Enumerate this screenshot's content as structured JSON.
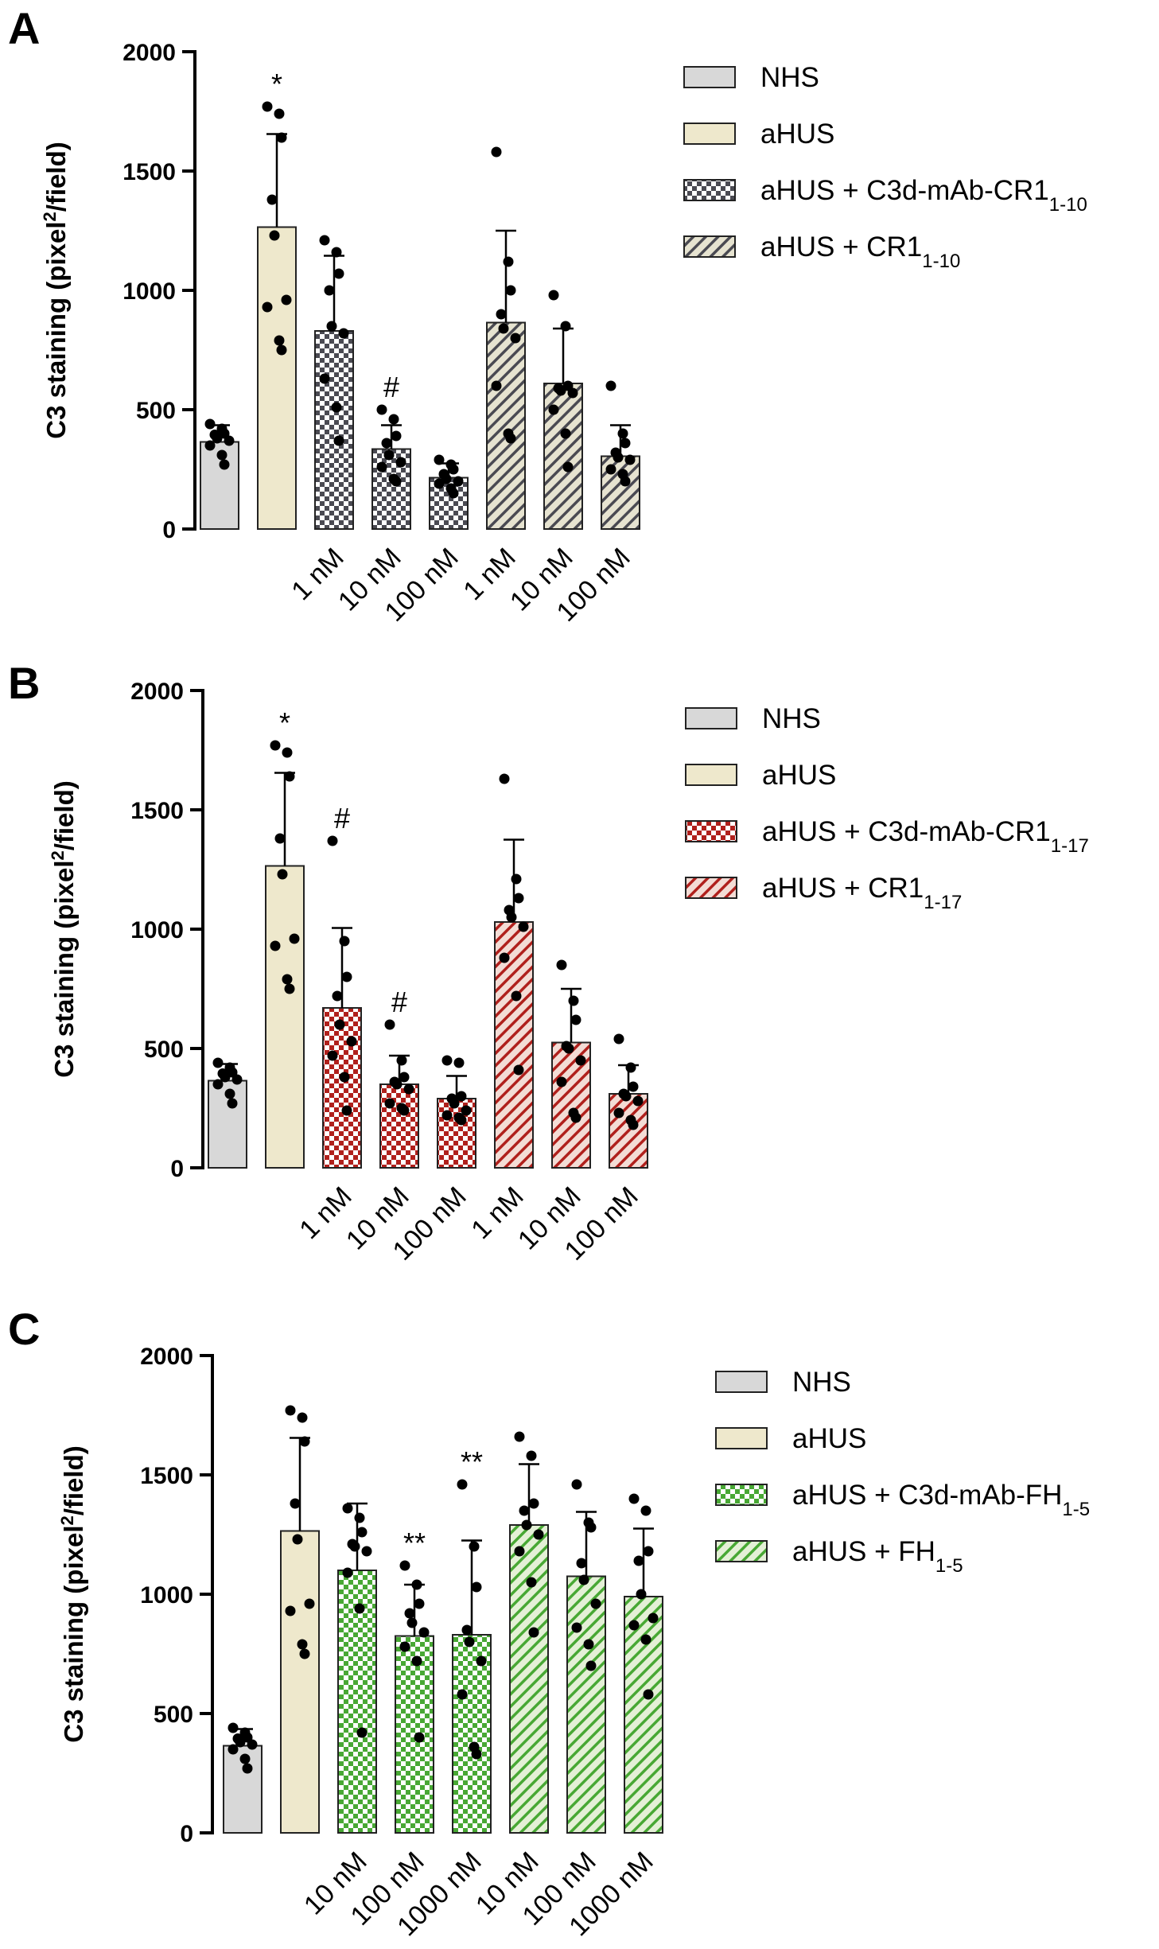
{
  "chart_data": [
    {
      "type": "bar",
      "panel": "A",
      "ylabel": "C3 staining (pixel²/field)",
      "ylabel_parts": {
        "pre": "C3 staining (pixel",
        "sup": "2",
        "post": "/field)"
      },
      "ylim": [
        0,
        2000
      ],
      "yticks": [
        0,
        500,
        1000,
        1500,
        2000
      ],
      "colors": {
        "NHS": "#d8d8d8",
        "aHUS": "#eee8cc",
        "C3d": "#4a4a52",
        "free": "#4a4a52",
        "free_bg": "#e6e3d0"
      },
      "legend": [
        {
          "label": "NHS",
          "sub": "",
          "style": "NHS"
        },
        {
          "label": "aHUS",
          "sub": "",
          "style": "aHUS"
        },
        {
          "label": "aHUS + C3d-mAb-CR1",
          "sub": "1-10",
          "style": "check"
        },
        {
          "label": "aHUS + CR1",
          "sub": "1-10",
          "style": "hatch"
        }
      ],
      "categories": [
        "",
        "",
        "1 nM",
        "10 nM",
        "100 nM",
        "1 nM",
        "10 nM",
        "100 nM"
      ],
      "bars": [
        {
          "group": "NHS",
          "style": "NHS",
          "mean": 365,
          "sd": 70,
          "points": [
            440,
            420,
            400,
            395,
            380,
            370,
            350,
            310,
            270
          ],
          "sig": ""
        },
        {
          "group": "aHUS",
          "style": "aHUS",
          "mean": 1265,
          "sd": 390,
          "points": [
            1770,
            1740,
            1640,
            1380,
            1230,
            960,
            930,
            790,
            750
          ],
          "sig": "*"
        },
        {
          "group": "aHUS + C3d-mAb-CR1 1-10",
          "style": "check",
          "mean": 830,
          "sd": 315,
          "points": [
            1210,
            1160,
            1070,
            1000,
            850,
            820,
            630,
            510,
            370
          ],
          "sig": ""
        },
        {
          "group": "aHUS + C3d-mAb-CR1 1-10",
          "style": "check",
          "mean": 335,
          "sd": 100,
          "points": [
            500,
            460,
            390,
            360,
            310,
            280,
            260,
            210,
            200
          ],
          "sig": "#"
        },
        {
          "group": "aHUS + C3d-mAb-CR1 1-10",
          "style": "check",
          "mean": 215,
          "sd": 60,
          "points": [
            290,
            270,
            250,
            230,
            210,
            200,
            190,
            170,
            150
          ],
          "sig": ""
        },
        {
          "group": "aHUS + CR1 1-10",
          "style": "hatch",
          "mean": 865,
          "sd": 385,
          "points": [
            1580,
            1120,
            1000,
            900,
            840,
            800,
            600,
            400,
            380
          ],
          "sig": ""
        },
        {
          "group": "aHUS + CR1 1-10",
          "style": "hatch",
          "mean": 610,
          "sd": 230,
          "points": [
            980,
            850,
            600,
            590,
            580,
            570,
            500,
            400,
            260
          ],
          "sig": ""
        },
        {
          "group": "aHUS + CR1 1-10",
          "style": "hatch",
          "mean": 305,
          "sd": 130,
          "points": [
            600,
            400,
            360,
            320,
            300,
            290,
            250,
            230,
            200
          ],
          "sig": ""
        }
      ]
    },
    {
      "type": "bar",
      "panel": "B",
      "ylabel": "C3 staining (pixel²/field)",
      "ylabel_parts": {
        "pre": "C3 staining (pixel",
        "sup": "2",
        "post": "/field)"
      },
      "ylim": [
        0,
        2000
      ],
      "yticks": [
        0,
        500,
        1000,
        1500,
        2000
      ],
      "colors": {
        "NHS": "#d8d8d8",
        "aHUS": "#eee8cc",
        "C3d": "#b0201c",
        "free": "#b0201c",
        "free_bg": "#f3dcd5"
      },
      "legend": [
        {
          "label": "NHS",
          "sub": "",
          "style": "NHS"
        },
        {
          "label": "aHUS",
          "sub": "",
          "style": "aHUS"
        },
        {
          "label": "aHUS + C3d-mAb-CR1",
          "sub": "1-17",
          "style": "check"
        },
        {
          "label": "aHUS + CR1",
          "sub": "1-17",
          "style": "hatch"
        }
      ],
      "categories": [
        "",
        "",
        "1 nM",
        "10 nM",
        "100 nM",
        "1 nM",
        "10 nM",
        "100 nM"
      ],
      "bars": [
        {
          "group": "NHS",
          "style": "NHS",
          "mean": 365,
          "sd": 70,
          "points": [
            440,
            420,
            400,
            395,
            380,
            370,
            350,
            310,
            270
          ],
          "sig": ""
        },
        {
          "group": "aHUS",
          "style": "aHUS",
          "mean": 1265,
          "sd": 390,
          "points": [
            1770,
            1740,
            1640,
            1380,
            1230,
            960,
            930,
            790,
            750
          ],
          "sig": "*"
        },
        {
          "group": "aHUS + C3d-mAb-CR1 1-17",
          "style": "check",
          "mean": 670,
          "sd": 335,
          "points": [
            1370,
            950,
            800,
            720,
            600,
            530,
            470,
            380,
            240
          ],
          "sig": "#"
        },
        {
          "group": "aHUS + C3d-mAb-CR1 1-17",
          "style": "check",
          "mean": 350,
          "sd": 120,
          "points": [
            600,
            450,
            380,
            360,
            350,
            330,
            270,
            250,
            240
          ],
          "sig": "#"
        },
        {
          "group": "aHUS + C3d-mAb-CR1 1-17",
          "style": "check",
          "mean": 290,
          "sd": 95,
          "points": [
            450,
            440,
            300,
            290,
            270,
            240,
            220,
            210,
            200
          ],
          "sig": ""
        },
        {
          "group": "aHUS + CR1 1-17",
          "style": "hatch",
          "mean": 1030,
          "sd": 345,
          "points": [
            1630,
            1210,
            1130,
            1080,
            1050,
            1010,
            880,
            720,
            410
          ],
          "sig": ""
        },
        {
          "group": "aHUS + CR1 1-17",
          "style": "hatch",
          "mean": 525,
          "sd": 225,
          "points": [
            850,
            700,
            620,
            510,
            500,
            450,
            360,
            230,
            210
          ],
          "sig": ""
        },
        {
          "group": "aHUS + CR1 1-17",
          "style": "hatch",
          "mean": 310,
          "sd": 120,
          "points": [
            540,
            420,
            340,
            310,
            300,
            280,
            230,
            200,
            180
          ],
          "sig": ""
        }
      ]
    },
    {
      "type": "bar",
      "panel": "C",
      "ylabel": "C3 staining (pixel²/field)",
      "ylabel_parts": {
        "pre": "C3 staining (pixel",
        "sup": "2",
        "post": "/field)"
      },
      "ylim": [
        0,
        2000
      ],
      "yticks": [
        0,
        500,
        1000,
        1500,
        2000
      ],
      "colors": {
        "NHS": "#d8d8d8",
        "aHUS": "#eee8cc",
        "C3d": "#48a834",
        "free": "#48a834",
        "free_bg": "#e4f0d6"
      },
      "legend": [
        {
          "label": "NHS",
          "sub": "",
          "style": "NHS"
        },
        {
          "label": "aHUS",
          "sub": "",
          "style": "aHUS"
        },
        {
          "label": "aHUS + C3d-mAb-FH",
          "sub": "1-5",
          "style": "check"
        },
        {
          "label": "aHUS + FH",
          "sub": "1-5",
          "style": "hatch"
        }
      ],
      "categories": [
        "",
        "",
        "10 nM",
        "100 nM",
        "1000 nM",
        "10 nM",
        "100 nM",
        "1000 nM"
      ],
      "bars": [
        {
          "group": "NHS",
          "style": "NHS",
          "mean": 365,
          "sd": 70,
          "points": [
            440,
            420,
            400,
            395,
            380,
            370,
            350,
            310,
            270
          ],
          "sig": ""
        },
        {
          "group": "aHUS",
          "style": "aHUS",
          "mean": 1265,
          "sd": 390,
          "points": [
            1770,
            1740,
            1640,
            1380,
            1230,
            960,
            930,
            790,
            750
          ],
          "sig": ""
        },
        {
          "group": "aHUS + C3d-mAb-FH 1-5",
          "style": "check",
          "mean": 1100,
          "sd": 280,
          "points": [
            1360,
            1320,
            1260,
            1210,
            1200,
            1180,
            1090,
            940,
            420
          ],
          "sig": ""
        },
        {
          "group": "aHUS + C3d-mAb-FH 1-5",
          "style": "check",
          "mean": 825,
          "sd": 215,
          "points": [
            1120,
            1040,
            960,
            920,
            880,
            840,
            780,
            720,
            400
          ],
          "sig": "**"
        },
        {
          "group": "aHUS + C3d-mAb-FH 1-5",
          "style": "check",
          "mean": 830,
          "sd": 395,
          "points": [
            1460,
            1200,
            1030,
            850,
            800,
            720,
            580,
            360,
            330
          ],
          "sig": "**"
        },
        {
          "group": "aHUS + FH 1-5",
          "style": "hatch",
          "mean": 1290,
          "sd": 255,
          "points": [
            1660,
            1580,
            1380,
            1350,
            1290,
            1250,
            1180,
            1050,
            840
          ],
          "sig": ""
        },
        {
          "group": "aHUS + FH 1-5",
          "style": "hatch",
          "mean": 1075,
          "sd": 270,
          "points": [
            1460,
            1300,
            1280,
            1130,
            1060,
            960,
            860,
            790,
            700
          ],
          "sig": ""
        },
        {
          "group": "aHUS + FH 1-5",
          "style": "hatch",
          "mean": 990,
          "sd": 285,
          "points": [
            1400,
            1350,
            1180,
            1140,
            1000,
            900,
            870,
            810,
            580
          ],
          "sig": ""
        }
      ]
    }
  ]
}
